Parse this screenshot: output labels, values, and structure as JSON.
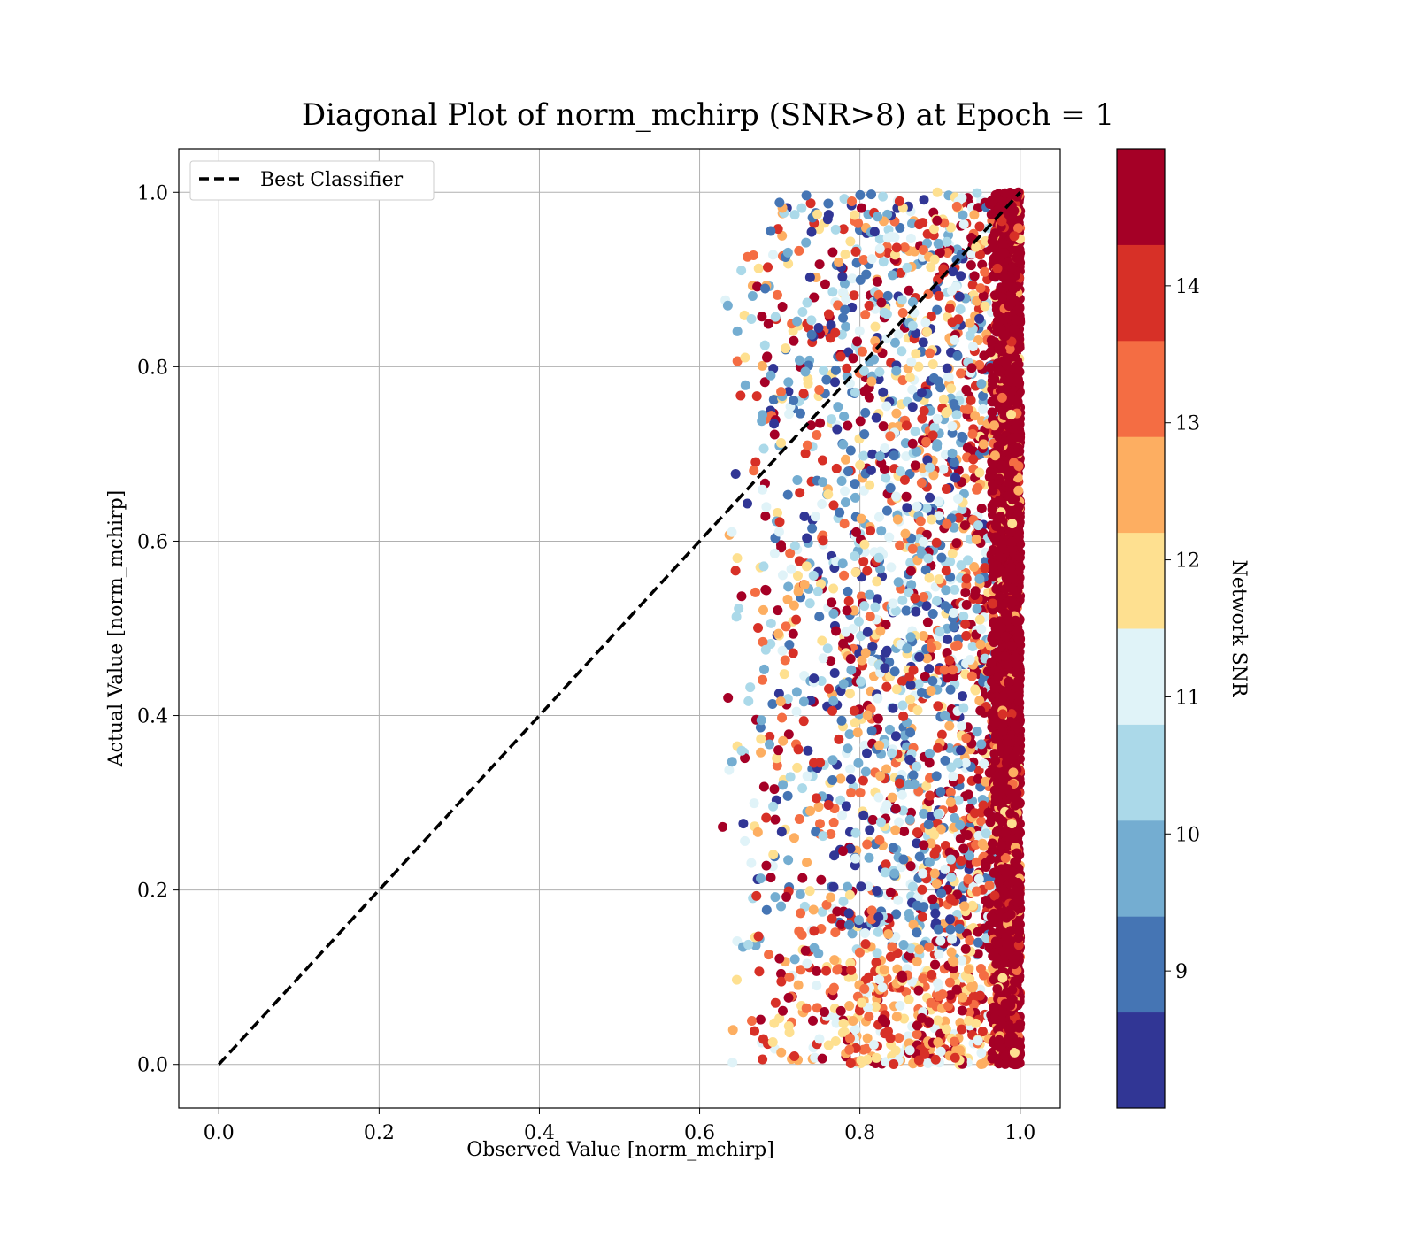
{
  "chart_data": {
    "type": "scatter",
    "title": "Diagonal Plot of norm_mchirp (SNR>8) at Epoch = 1",
    "xlabel": "Observed Value [norm_mchirp]",
    "ylabel": "Actual Value [norm_mchirp]",
    "xlim": [
      -0.05,
      1.05
    ],
    "ylim": [
      -0.05,
      1.05
    ],
    "xticks": [
      "0.0",
      "0.2",
      "0.4",
      "0.6",
      "0.8",
      "1.0"
    ],
    "yticks": [
      "0.0",
      "0.2",
      "0.4",
      "0.6",
      "0.8",
      "1.0"
    ],
    "grid": true,
    "legend": {
      "position": "top-left",
      "entries": [
        "Best Classifier"
      ]
    },
    "reference_line": {
      "name": "Best Classifier",
      "x": [
        0.0,
        1.0
      ],
      "y": [
        0.0,
        1.0
      ],
      "style": "dashed",
      "color": "#000000"
    },
    "scatter_summary": {
      "x_range": [
        0.62,
        1.0
      ],
      "y_range": [
        0.0,
        1.0
      ],
      "color_variable": "Network SNR",
      "dense_band_x": [
        0.96,
        1.0
      ]
    },
    "colorbar": {
      "label": "Network SNR",
      "range": [
        8.0,
        15.0
      ],
      "ticks": [
        "9",
        "10",
        "11",
        "12",
        "13",
        "14"
      ],
      "tick_values": [
        9,
        10,
        11,
        12,
        13,
        14
      ],
      "colors": [
        "#313695",
        "#4575b4",
        "#74add1",
        "#abd9e9",
        "#e0f3f8",
        "#fee090",
        "#fdae61",
        "#f46d43",
        "#d73027",
        "#a50026"
      ]
    }
  }
}
